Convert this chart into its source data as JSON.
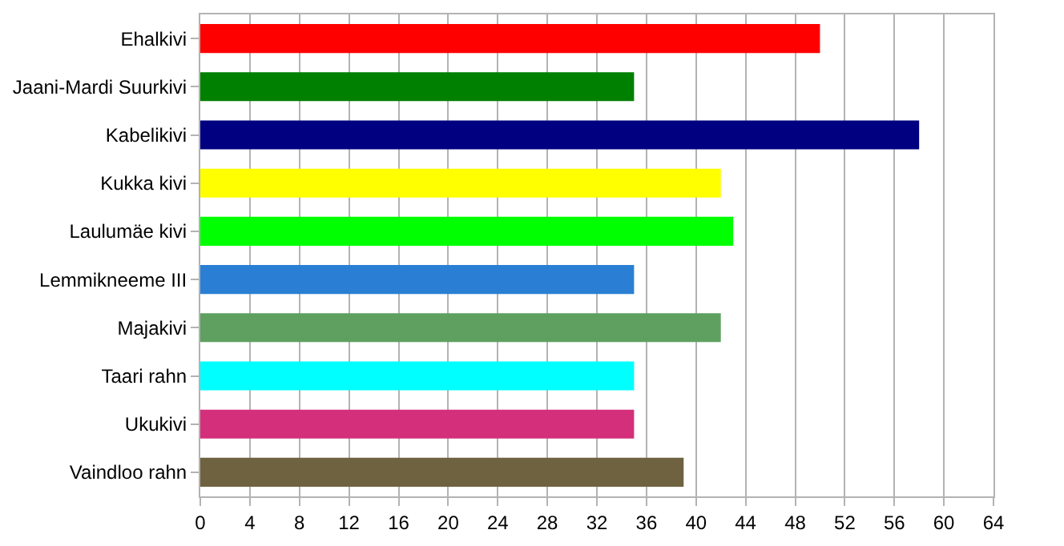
{
  "chart_data": {
    "type": "bar",
    "orientation": "horizontal",
    "categories": [
      "Ehalkivi",
      "Jaani-Mardi Suurkivi",
      "Kabelikivi",
      "Kukka kivi",
      "Laulumäe kivi",
      "Lemmikneeme III",
      "Majakivi",
      "Taari rahn",
      "Ukukivi",
      "Vaindloo rahn"
    ],
    "values": [
      50,
      35,
      58,
      42,
      43,
      35,
      42,
      35,
      35,
      39
    ],
    "colors": [
      "#ff0000",
      "#008000",
      "#000080",
      "#ffff00",
      "#00ff00",
      "#2a7fd4",
      "#5fa060",
      "#00ffff",
      "#d42f7a",
      "#6e6240"
    ],
    "xlim": [
      0,
      64
    ],
    "xticks": [
      0,
      4,
      8,
      12,
      16,
      20,
      24,
      28,
      32,
      36,
      40,
      44,
      48,
      52,
      56,
      60,
      64
    ],
    "grid": "x"
  }
}
